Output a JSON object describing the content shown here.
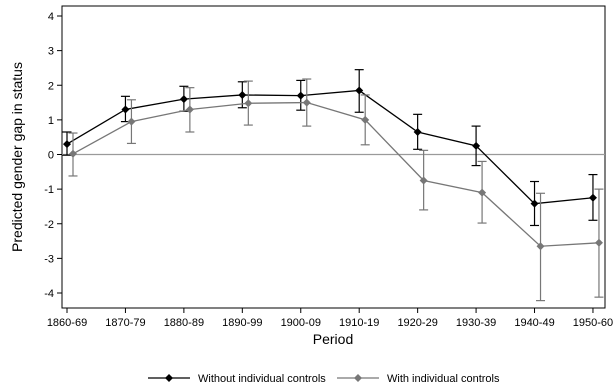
{
  "chart_data": {
    "type": "line",
    "title": "",
    "xlabel": "Period",
    "ylabel": "Predicted gender gap in status",
    "categories": [
      "1860-69",
      "1870-79",
      "1880-89",
      "1890-99",
      "1900-09",
      "1910-19",
      "1920-29",
      "1930-39",
      "1940-49",
      "1950-60"
    ],
    "ylim": [
      -4,
      4
    ],
    "yticks": [
      "-4",
      "-3",
      "-2",
      "-1",
      "0",
      "1",
      "2",
      "3",
      "4"
    ],
    "reference_line_y": 0,
    "grid": false,
    "legend_position": "bottom",
    "series": [
      {
        "name": "Without individual controls",
        "color": "#000000",
        "marker": "diamond",
        "values": [
          0.3,
          1.3,
          1.6,
          1.72,
          1.7,
          1.85,
          0.65,
          0.25,
          -1.42,
          -1.25
        ],
        "ci_low": [
          -0.02,
          0.95,
          1.25,
          1.35,
          1.28,
          1.22,
          0.15,
          -0.32,
          -2.05,
          -1.9
        ],
        "ci_high": [
          0.65,
          1.68,
          1.97,
          2.1,
          2.14,
          2.45,
          1.16,
          0.82,
          -0.78,
          -0.58
        ]
      },
      {
        "name": "With individual controls",
        "color": "#777777",
        "marker": "diamond",
        "values": [
          0.02,
          0.95,
          1.3,
          1.48,
          1.5,
          1.0,
          -0.75,
          -1.1,
          -2.65,
          -2.55
        ],
        "ci_low": [
          -0.62,
          0.32,
          0.65,
          0.85,
          0.82,
          0.28,
          -1.6,
          -1.98,
          -4.22,
          -4.12
        ],
        "ci_high": [
          0.62,
          1.58,
          1.93,
          2.12,
          2.18,
          1.72,
          0.12,
          -0.2,
          -1.12,
          -1.0
        ]
      }
    ]
  }
}
